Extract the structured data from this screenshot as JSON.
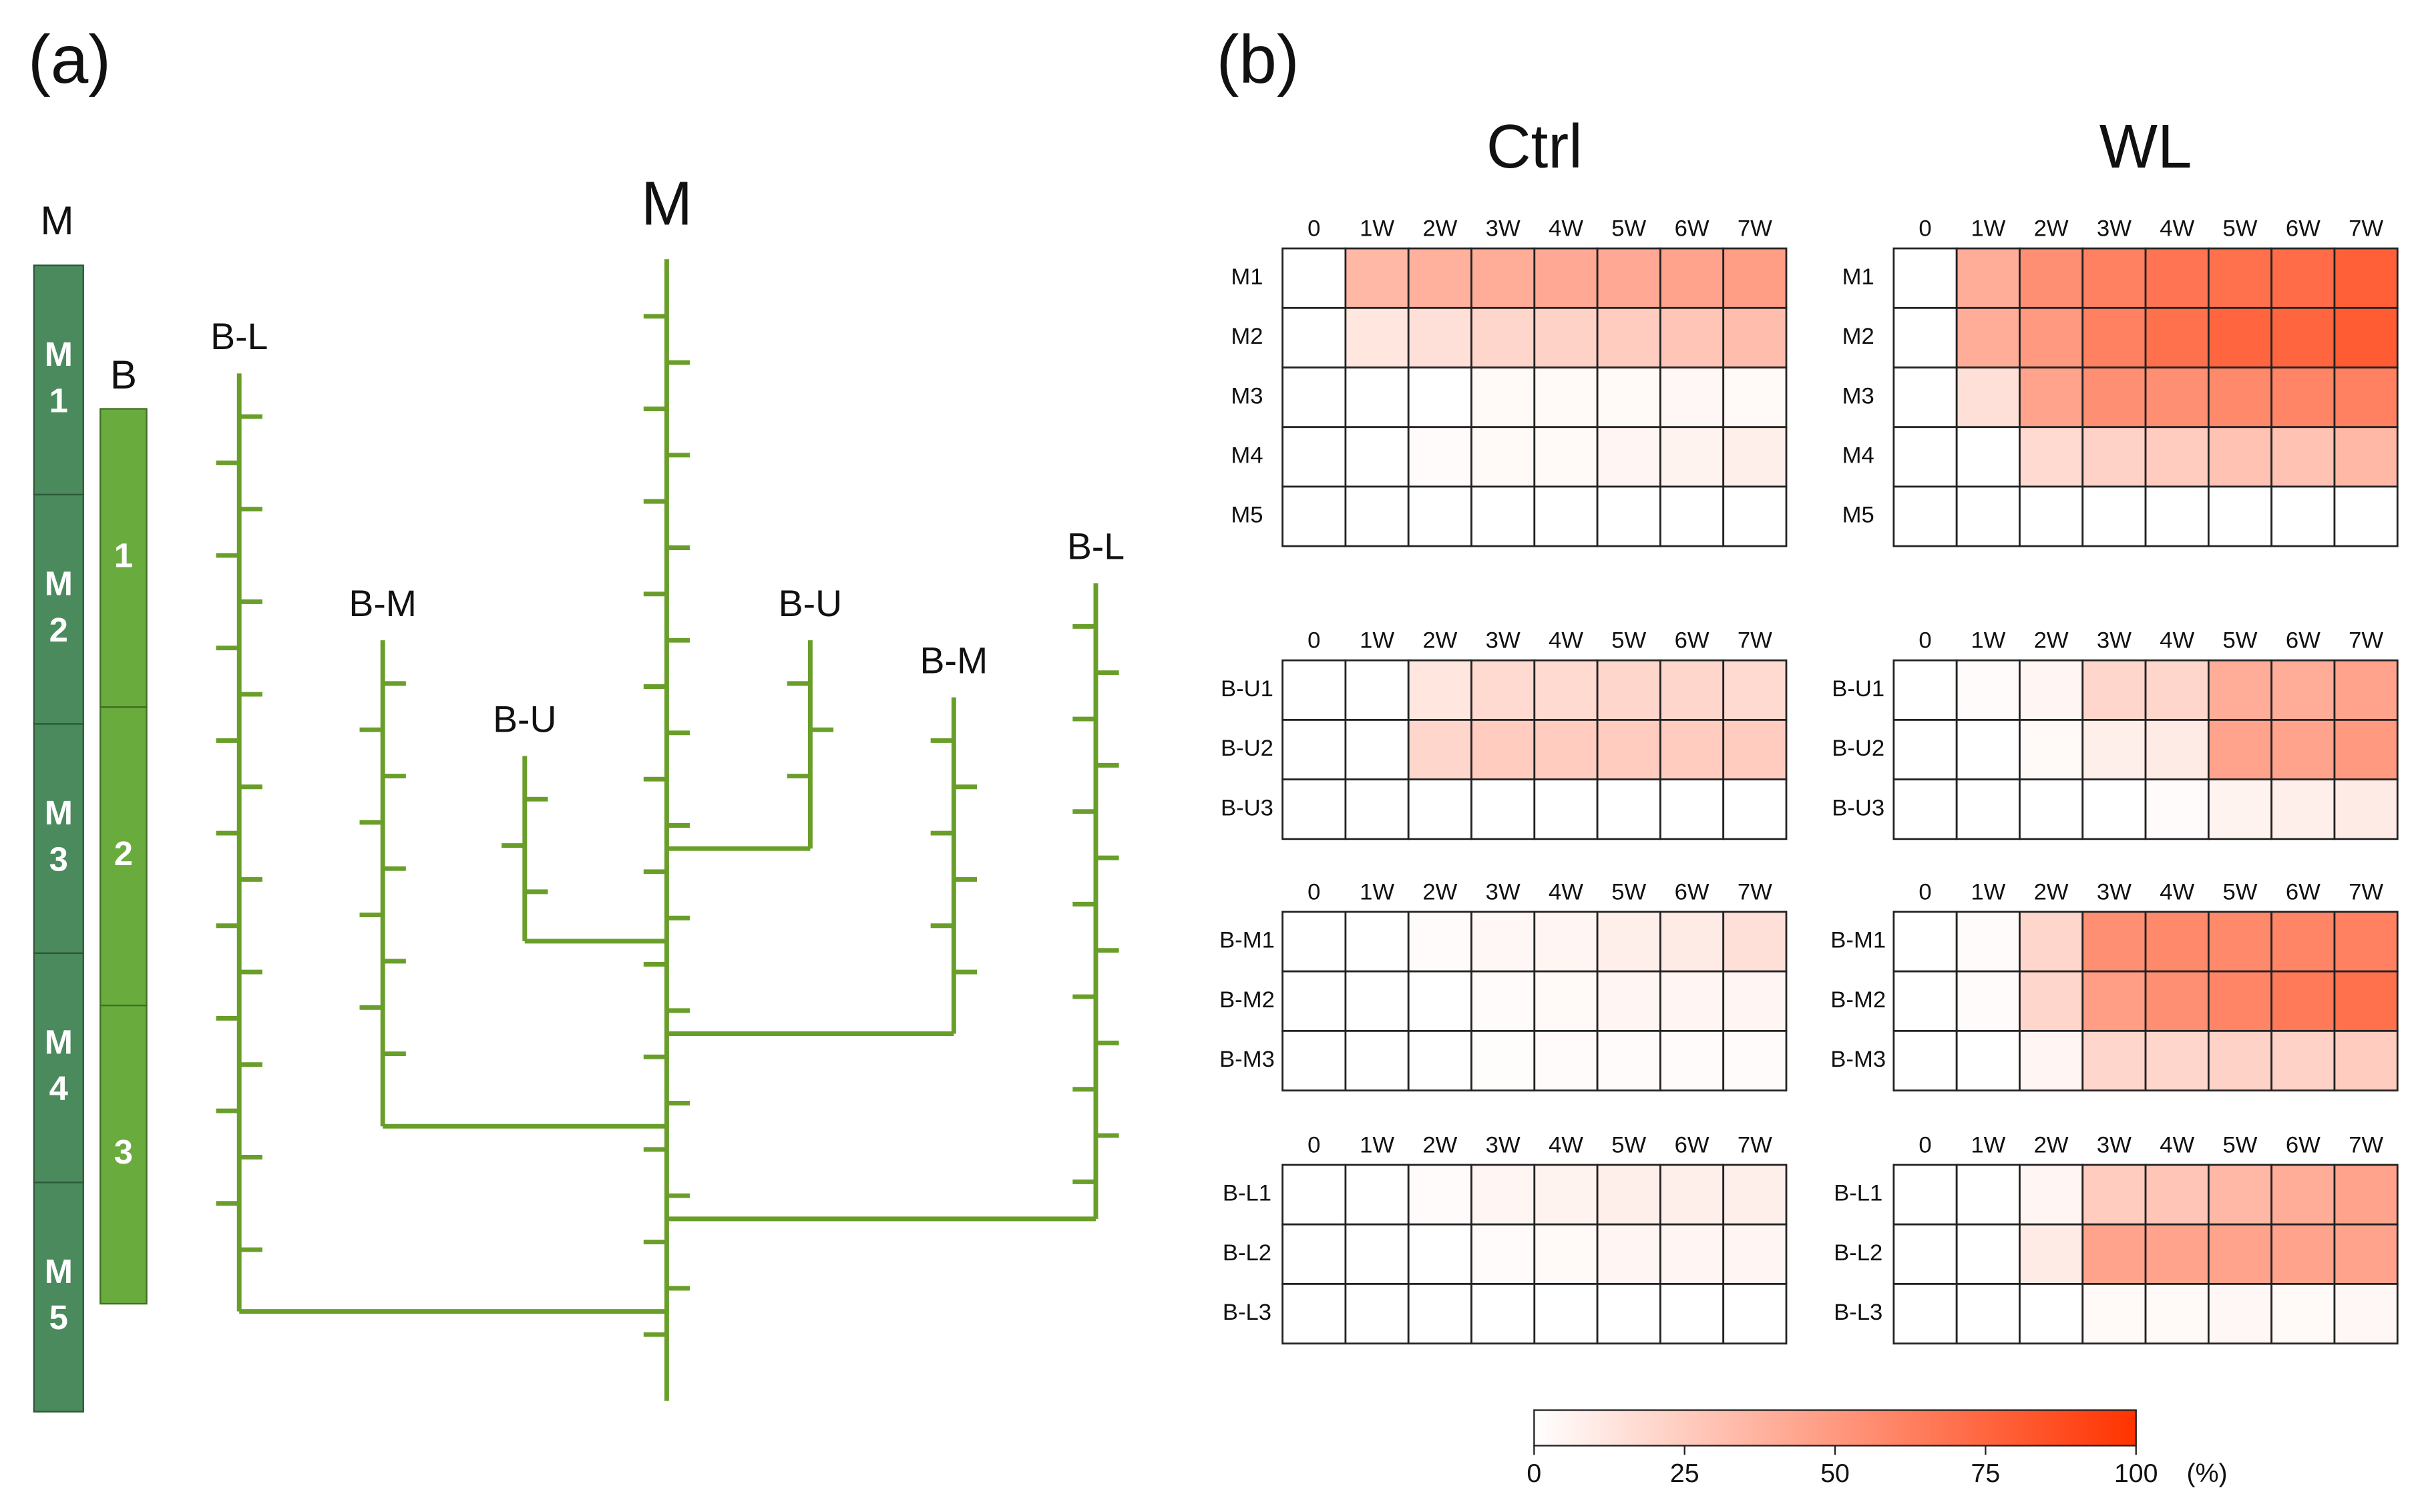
{
  "panel_labels": [
    "(a)",
    "(b)"
  ],
  "diagram": {
    "bar_m": {
      "label": "M",
      "segments": [
        [
          "M",
          "1"
        ],
        [
          "M",
          "2"
        ],
        [
          "M",
          "3"
        ],
        [
          "M",
          "4"
        ],
        [
          "M",
          "5"
        ]
      ]
    },
    "bar_b": {
      "label": "B",
      "segments": [
        "1",
        "2",
        "3"
      ]
    },
    "tree": {
      "main": "M",
      "branches": [
        "B-L",
        "B-M",
        "B-U",
        "B-U",
        "B-M",
        "B-L"
      ]
    }
  },
  "chart_data": [
    {
      "type": "heatmap",
      "title": "Ctrl",
      "x": [
        "0",
        "1W",
        "2W",
        "3W",
        "4W",
        "5W",
        "6W",
        "7W"
      ],
      "y": [
        "M1",
        "M2",
        "M3",
        "M4",
        "M5"
      ],
      "values": [
        [
          0,
          35,
          38,
          40,
          42,
          42,
          45,
          48
        ],
        [
          0,
          12,
          15,
          20,
          22,
          25,
          28,
          32
        ],
        [
          0,
          0,
          0,
          3,
          3,
          3,
          4,
          3
        ],
        [
          0,
          0,
          2,
          3,
          3,
          5,
          6,
          8
        ],
        [
          0,
          0,
          0,
          0,
          0,
          0,
          0,
          0
        ]
      ]
    },
    {
      "type": "heatmap",
      "title": "WL",
      "x": [
        "0",
        "1W",
        "2W",
        "3W",
        "4W",
        "5W",
        "6W",
        "7W"
      ],
      "y": [
        "M1",
        "M2",
        "M3",
        "M4",
        "M5"
      ],
      "values": [
        [
          0,
          40,
          55,
          62,
          68,
          70,
          72,
          78
        ],
        [
          0,
          40,
          50,
          62,
          70,
          75,
          75,
          80
        ],
        [
          0,
          15,
          45,
          55,
          55,
          58,
          60,
          62
        ],
        [
          0,
          0,
          18,
          22,
          25,
          30,
          30,
          35
        ],
        [
          0,
          0,
          0,
          0,
          0,
          0,
          0,
          0
        ]
      ]
    },
    {
      "type": "heatmap",
      "x": [
        "0",
        "1W",
        "2W",
        "3W",
        "4W",
        "5W",
        "6W",
        "7W"
      ],
      "y": [
        "B-U1",
        "B-U2",
        "B-U3"
      ],
      "values": [
        [
          0,
          0,
          12,
          18,
          18,
          20,
          20,
          18
        ],
        [
          0,
          0,
          20,
          25,
          25,
          25,
          25,
          25
        ],
        [
          0,
          0,
          0,
          0,
          0,
          0,
          0,
          0
        ]
      ]
    },
    {
      "type": "heatmap",
      "x": [
        "0",
        "1W",
        "2W",
        "3W",
        "4W",
        "5W",
        "6W",
        "7W"
      ],
      "y": [
        "B-U1",
        "B-U2",
        "B-U3"
      ],
      "values": [
        [
          0,
          2,
          5,
          20,
          20,
          40,
          40,
          45
        ],
        [
          0,
          0,
          3,
          8,
          10,
          45,
          45,
          50
        ],
        [
          0,
          0,
          0,
          0,
          2,
          6,
          8,
          10
        ]
      ]
    },
    {
      "type": "heatmap",
      "x": [
        "0",
        "1W",
        "2W",
        "3W",
        "4W",
        "5W",
        "6W",
        "7W"
      ],
      "y": [
        "B-M1",
        "B-M2",
        "B-M3"
      ],
      "values": [
        [
          0,
          0,
          2,
          4,
          5,
          8,
          10,
          15
        ],
        [
          0,
          0,
          0,
          2,
          3,
          5,
          5,
          5
        ],
        [
          0,
          0,
          0,
          1,
          2,
          2,
          2,
          2
        ]
      ]
    },
    {
      "type": "heatmap",
      "x": [
        "0",
        "1W",
        "2W",
        "3W",
        "4W",
        "5W",
        "6W",
        "7W"
      ],
      "y": [
        "B-M1",
        "B-M2",
        "B-M3"
      ],
      "values": [
        [
          0,
          2,
          20,
          55,
          58,
          58,
          60,
          62
        ],
        [
          0,
          2,
          20,
          48,
          55,
          60,
          65,
          70
        ],
        [
          0,
          0,
          5,
          20,
          20,
          22,
          22,
          25
        ]
      ]
    },
    {
      "type": "heatmap",
      "x": [
        "0",
        "1W",
        "2W",
        "3W",
        "4W",
        "5W",
        "6W",
        "7W"
      ],
      "y": [
        "B-L1",
        "B-L2",
        "B-L3"
      ],
      "values": [
        [
          0,
          0,
          2,
          5,
          6,
          8,
          8,
          8
        ],
        [
          0,
          0,
          0,
          2,
          3,
          5,
          5,
          5
        ],
        [
          0,
          0,
          0,
          0,
          0,
          0,
          0,
          0
        ]
      ]
    },
    {
      "type": "heatmap",
      "x": [
        "0",
        "1W",
        "2W",
        "3W",
        "4W",
        "5W",
        "6W",
        "7W"
      ],
      "y": [
        "B-L1",
        "B-L2",
        "B-L3"
      ],
      "values": [
        [
          0,
          0,
          5,
          25,
          28,
          35,
          40,
          45
        ],
        [
          0,
          0,
          10,
          45,
          45,
          45,
          45,
          45
        ],
        [
          0,
          0,
          0,
          3,
          3,
          4,
          3,
          4
        ]
      ]
    }
  ],
  "colorbar": {
    "zlim": [
      0,
      100
    ],
    "ticks": [
      0,
      25,
      50,
      75,
      100
    ],
    "unit": "(%)",
    "colors": [
      "#ffffff",
      "#ff3300"
    ]
  }
}
